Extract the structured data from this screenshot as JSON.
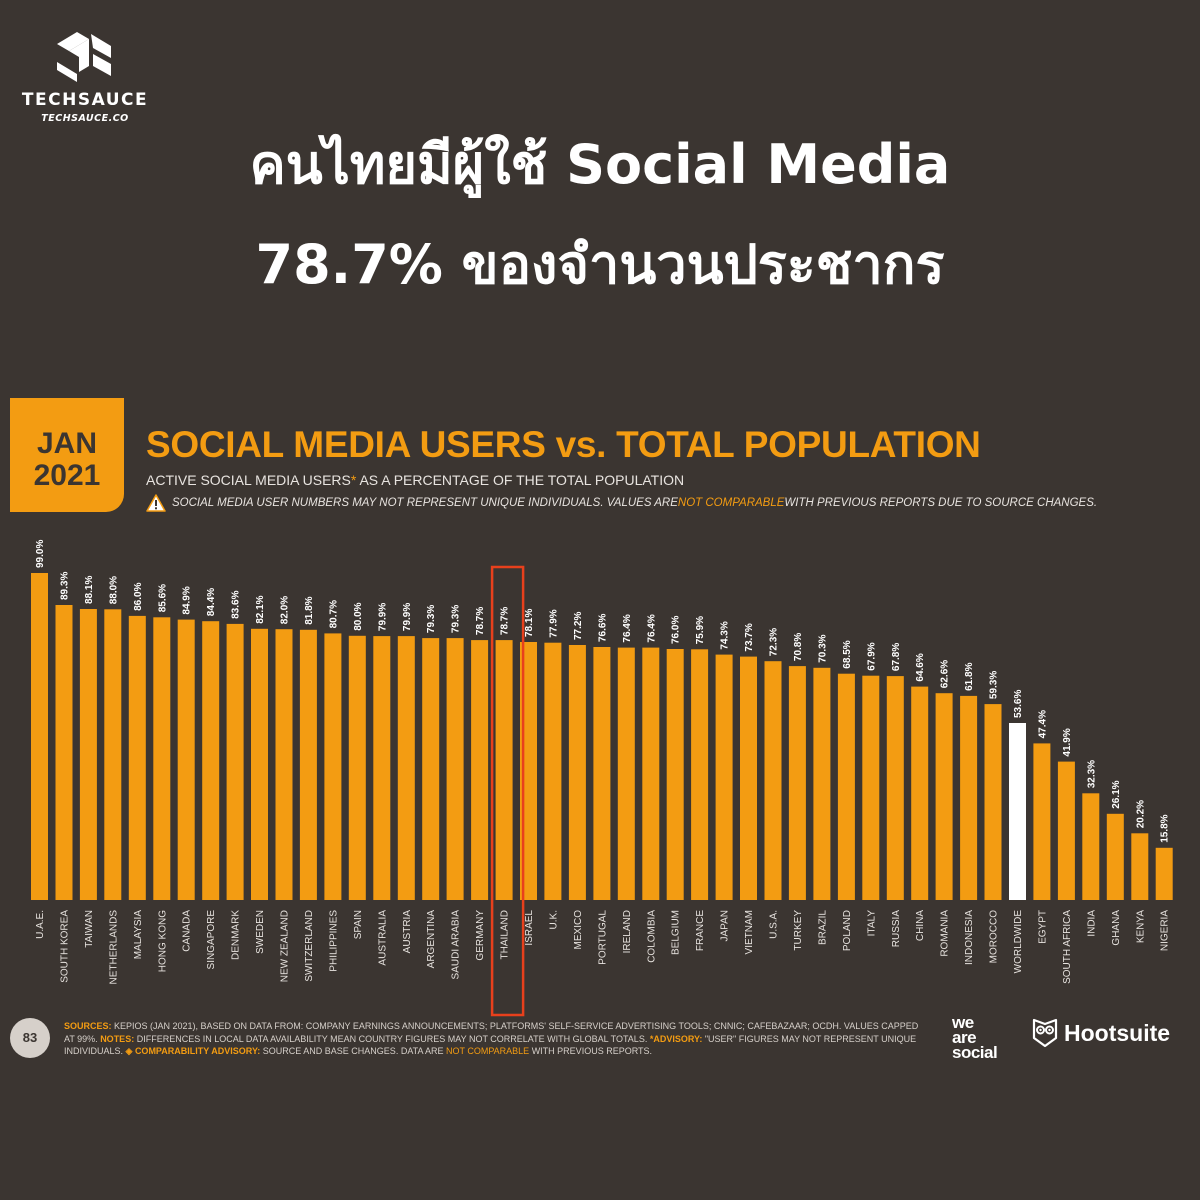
{
  "brand": {
    "name": "TECHSAUCE",
    "url": "TECHSAUCE.CO"
  },
  "headline": {
    "line1": "คนไทยมีผู้ใช้ Social Media",
    "line2": "78.7% ของจำนวนประชากร"
  },
  "badge": {
    "month": "JAN",
    "year": "2021"
  },
  "page_number": "83",
  "logos": {
    "we_are_social": [
      "we",
      "are",
      "social"
    ],
    "hootsuite": "Hootsuite"
  },
  "footer": {
    "sources_label": "SOURCES:",
    "sources_text": " KEPIOS (JAN 2021), BASED ON DATA FROM: COMPANY EARNINGS ANNOUNCEMENTS; PLATFORMS' SELF-SERVICE ADVERTISING TOOLS; CNNIC; CAFEBAZAAR; OCDH. VALUES CAPPED AT 99%. ",
    "notes_label": "NOTES:",
    "notes_text": " DIFFERENCES IN LOCAL DATA AVAILABILITY MEAN COUNTRY FIGURES MAY NOT CORRELATE WITH GLOBAL TOTALS. ",
    "advisory_label": "*ADVISORY:",
    "advisory_text": " \"USER\" FIGURES MAY NOT REPRESENT UNIQUE INDIVIDUALS. ",
    "comparability_label": "◈ COMPARABILITY ADVISORY:",
    "comparability_text": " SOURCE AND BASE CHANGES. DATA ARE ",
    "not_comparable": "NOT COMPARABLE",
    "comparability_end": " WITH PREVIOUS REPORTS."
  },
  "chart_data": {
    "type": "bar",
    "title": "SOCIAL MEDIA USERS vs. TOTAL POPULATION",
    "subtitle_main": "ACTIVE SOCIAL MEDIA USERS",
    "subtitle_asterisk": "*",
    "subtitle_rest": " AS A PERCENTAGE OF THE TOTAL POPULATION",
    "warning_text_1": "SOCIAL MEDIA USER NUMBERS MAY NOT REPRESENT UNIQUE INDIVIDUALS. VALUES ARE ",
    "warning_highlight": "NOT COMPARABLE",
    "warning_text_2": " WITH PREVIOUS REPORTS DUE TO SOURCE CHANGES.",
    "ylim": [
      0,
      100
    ],
    "colors": {
      "bar": "#f39c12",
      "worldwide": "#ffffff",
      "highlight_box": "#e8401c",
      "category_label": "#e8e4e0"
    },
    "highlight_category": "THAILAND",
    "worldwide_category": "WORLDWIDE",
    "categories": [
      "U.A.E.",
      "SOUTH KOREA",
      "TAIWAN",
      "NETHERLANDS",
      "MALAYSIA",
      "HONG KONG",
      "CANADA",
      "SINGAPORE",
      "DENMARK",
      "SWEDEN",
      "NEW ZEALAND",
      "SWITZERLAND",
      "PHILIPPINES",
      "SPAIN",
      "AUSTRALIA",
      "AUSTRIA",
      "ARGENTINA",
      "SAUDI ARABIA",
      "GERMANY",
      "THAILAND",
      "ISRAEL",
      "U.K.",
      "MEXICO",
      "PORTUGAL",
      "IRELAND",
      "COLOMBIA",
      "BELGIUM",
      "FRANCE",
      "JAPAN",
      "VIETNAM",
      "U.S.A.",
      "TURKEY",
      "BRAZIL",
      "POLAND",
      "ITALY",
      "RUSSIA",
      "CHINA",
      "ROMANIA",
      "INDONESIA",
      "MOROCCO",
      "WORLDWIDE",
      "EGYPT",
      "SOUTH AFRICA",
      "INDIA",
      "GHANA",
      "KENYA",
      "NIGERIA"
    ],
    "values": [
      99.0,
      89.3,
      88.1,
      88.0,
      86.0,
      85.6,
      84.9,
      84.4,
      83.6,
      82.1,
      82.0,
      81.8,
      80.7,
      80.0,
      79.9,
      79.9,
      79.3,
      79.3,
      78.7,
      78.7,
      78.1,
      77.9,
      77.2,
      76.6,
      76.4,
      76.4,
      76.0,
      75.9,
      74.3,
      73.7,
      72.3,
      70.8,
      70.3,
      68.5,
      67.9,
      67.8,
      64.6,
      62.6,
      61.8,
      59.3,
      53.6,
      47.4,
      41.9,
      32.3,
      26.1,
      20.2,
      15.8
    ],
    "value_labels": [
      "99.0%",
      "89.3%",
      "88.1%",
      "88.0%",
      "86.0%",
      "85.6%",
      "84.9%",
      "84.4%",
      "83.6%",
      "82.1%",
      "82.0%",
      "81.8%",
      "80.7%",
      "80.0%",
      "79.9%",
      "79.9%",
      "79.3%",
      "79.3%",
      "78.7%",
      "78.7%",
      "78.1%",
      "77.9%",
      "77.2%",
      "76.6%",
      "76.4%",
      "76.4%",
      "76.0%",
      "75.9%",
      "74.3%",
      "73.7%",
      "72.3%",
      "70.8%",
      "70.3%",
      "68.5%",
      "67.9%",
      "67.8%",
      "64.6%",
      "62.6%",
      "61.8%",
      "59.3%",
      "53.6%",
      "47.4%",
      "41.9%",
      "32.3%",
      "26.1%",
      "20.2%",
      "15.8%"
    ]
  }
}
